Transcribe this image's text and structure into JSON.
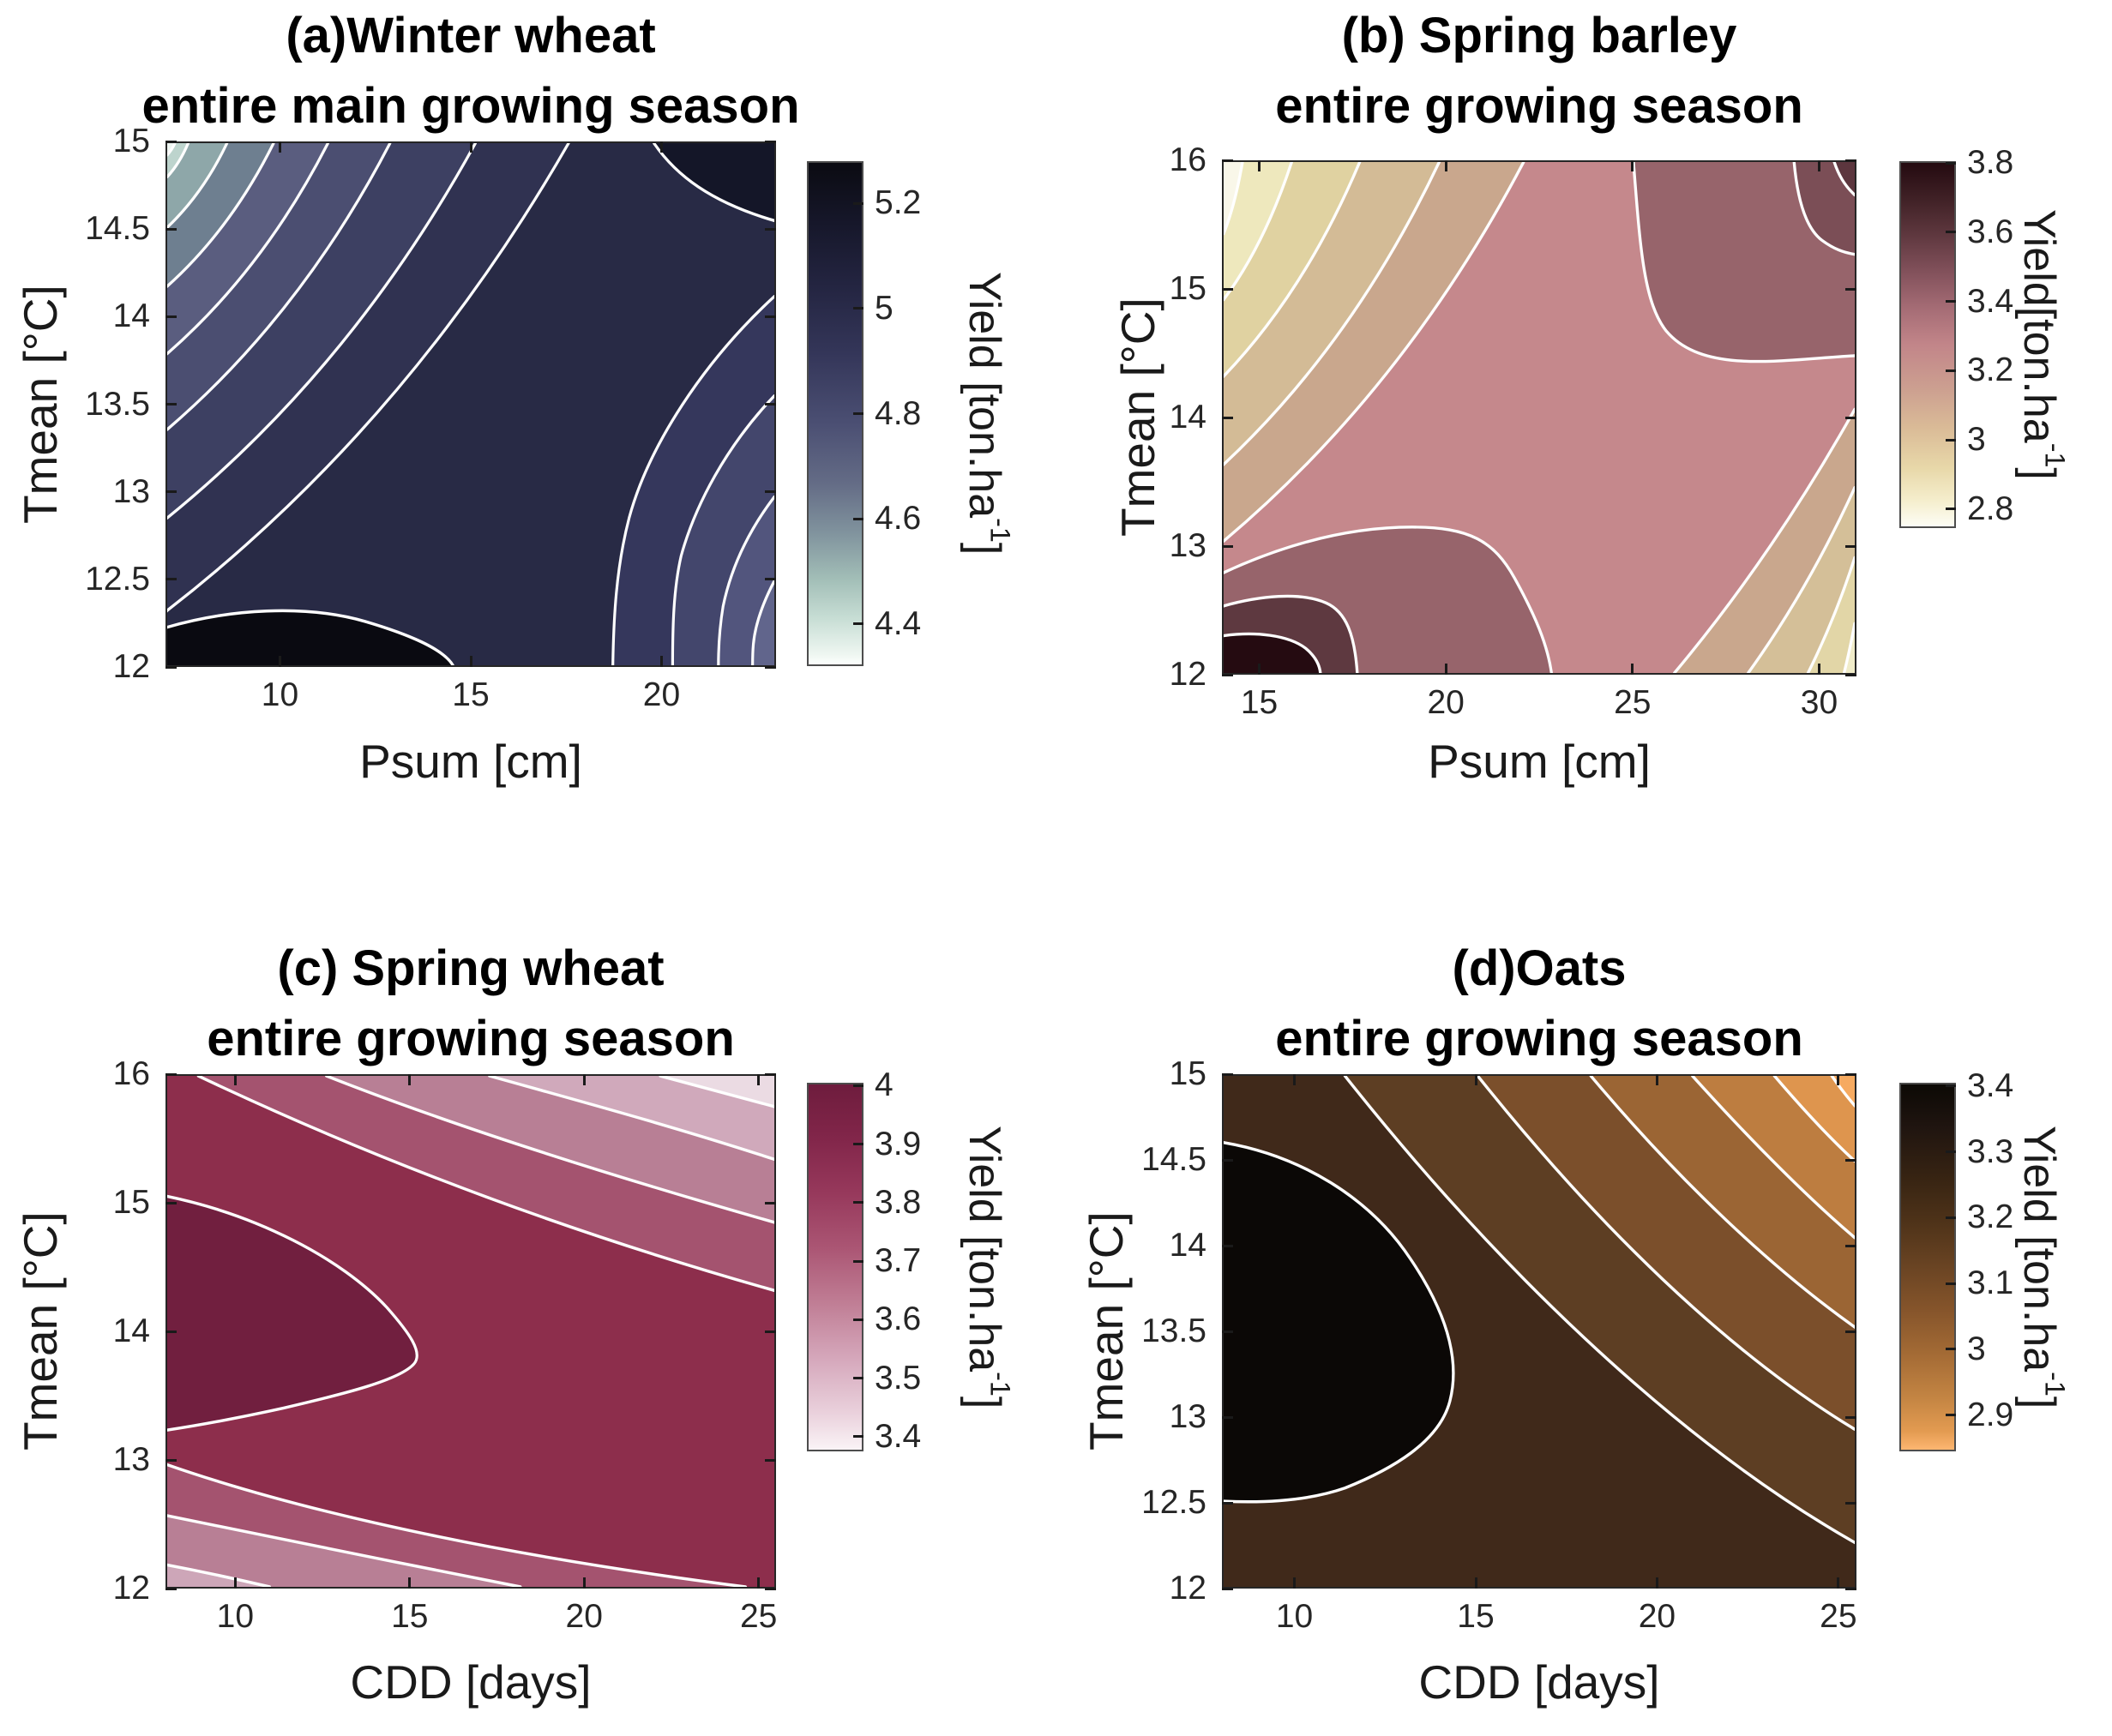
{
  "figure": {
    "description": "Four filled contour plots (response surfaces) of crop yield versus growing-season climate variables",
    "contour_line_color": "#ffffff",
    "background": "#ffffff"
  },
  "chart_data": {
    "type": "filled_contour_grid",
    "panels": [
      {
        "label": "a",
        "crop": "Winter wheat",
        "title1": "(a)Winter wheat",
        "title2": "entire main growing season",
        "xlabel": "Psum [cm]",
        "ylabel": "Tmean [°C]",
        "x_range": [
          7,
          23
        ],
        "x_ticks": [
          10,
          15,
          20
        ],
        "x_tick_labels": [
          "10",
          "15",
          "20"
        ],
        "y_range": [
          12,
          15
        ],
        "y_ticks": [
          12,
          12.5,
          13,
          13.5,
          14,
          14.5,
          15
        ],
        "y_tick_labels": [
          "12",
          "12.5",
          "13",
          "13.5",
          "14",
          "14.5",
          "15"
        ],
        "colorbar": {
          "label": "Yield [ton.ha",
          "label_sup": "-1",
          "label_close": "]",
          "top_value": 5.28,
          "bottom_value": 4.32,
          "ticks": [
            5.2,
            5,
            4.8,
            4.6,
            4.4
          ],
          "tick_labels": [
            "5.2",
            "5",
            "4.8",
            "4.6",
            "4.4"
          ],
          "colormap": [
            "#fcfffd",
            "#a2beb7",
            "#4b4f73",
            "#232440",
            "#0b0b12"
          ],
          "direction": "dark = high yield"
        },
        "yield_estimates": {
          "top_left": 4.35,
          "top_right": 5.25,
          "center": 5.15,
          "bottom_left_max": 5.3,
          "bottom_right": 4.85,
          "pattern": "low yield fan at low Psum / high Tmean (top-left); maximum dark region at low Psum / low Tmean (bottom-left); yield decreases again toward high Psum at low Tmean (bottom-right bands)"
        }
      },
      {
        "label": "b",
        "crop": "Spring barley",
        "title1": "(b) Spring barley",
        "title2": "entire growing season",
        "xlabel": "Psum [cm]",
        "ylabel": "Tmean [°C]",
        "x_range": [
          14,
          31
        ],
        "x_ticks": [
          15,
          20,
          25,
          30
        ],
        "x_tick_labels": [
          "15",
          "20",
          "25",
          "30"
        ],
        "y_range": [
          12,
          16
        ],
        "y_ticks": [
          12,
          13,
          14,
          15,
          16
        ],
        "y_tick_labels": [
          "12",
          "13",
          "14",
          "15",
          "16"
        ],
        "colorbar": {
          "label": "Yield[ton.ha",
          "label_sup": "-1",
          "label_close": "]",
          "top_value": 3.805,
          "bottom_value": 2.745,
          "ticks": [
            3.8,
            3.6,
            3.4,
            3.2,
            3,
            2.8
          ],
          "tick_labels": [
            "3.8",
            "3.6",
            "3.4",
            "3.2",
            "3",
            "2.8"
          ],
          "colormap": [
            "#fdfdf5",
            "#e8d8a9",
            "#c28589",
            "#82515b",
            "#240a10"
          ],
          "direction": "dark = high yield"
        },
        "yield_estimates": {
          "top_left": 2.78,
          "top_right": 3.68,
          "center": 3.42,
          "bottom_left_max": 3.8,
          "bottom_right": 2.9,
          "pattern": "saddle surface: pale low-yield fans at top-left and bottom-right corners; dark high-yield maximum at bottom-left (low Psum, low Tmean) and secondary dark region at top-right (high Psum, high Tmean)"
        }
      },
      {
        "label": "c",
        "crop": "Spring wheat",
        "title1": "(c) Spring wheat",
        "title2": "entire growing season",
        "xlabel": "CDD [days]",
        "ylabel": "Tmean [°C]",
        "x_range": [
          8,
          25.5
        ],
        "x_ticks": [
          10,
          15,
          20,
          25
        ],
        "x_tick_labels": [
          "10",
          "15",
          "20",
          "25"
        ],
        "y_range": [
          12,
          16
        ],
        "y_ticks": [
          12,
          13,
          14,
          15,
          16
        ],
        "y_tick_labels": [
          "12",
          "13",
          "14",
          "15",
          "16"
        ],
        "colorbar": {
          "label": "Yield [ton.ha",
          "label_sup": "-1",
          "label_close": "]",
          "top_value": 4.005,
          "bottom_value": 3.375,
          "ticks": [
            4,
            3.9,
            3.8,
            3.7,
            3.6,
            3.5,
            3.4
          ],
          "tick_labels": [
            "4",
            "3.9",
            "3.8",
            "3.7",
            "3.6",
            "3.5",
            "3.4"
          ],
          "colormap": [
            "#faf3f6",
            "#d5a7bb",
            "#ab5674",
            "#82264a",
            "#6e1c3d"
          ],
          "direction": "dark = high yield"
        },
        "yield_estimates": {
          "top_left": 3.93,
          "top_right": 3.42,
          "center": 3.92,
          "left_center_max": 4.0,
          "bottom_left": 3.6,
          "bottom_right": 3.88,
          "pattern": "dark high-yield region over most of plot; darkest maximum lobe at left (CDD 8-14, Tmean ~13.5-15); yield decreases in diagonal bands toward top-right corner (white) and slightly toward bottom-left"
        }
      },
      {
        "label": "d",
        "crop": "Oats",
        "title1": "(d)Oats",
        "title2": "entire growing season",
        "xlabel": "CDD [days]",
        "ylabel": "Tmean [°C]",
        "x_range": [
          8,
          25.5
        ],
        "x_ticks": [
          10,
          15,
          20,
          25
        ],
        "x_tick_labels": [
          "10",
          "15",
          "20",
          "25"
        ],
        "y_range": [
          12,
          15
        ],
        "y_ticks": [
          12,
          12.5,
          13,
          13.5,
          14,
          14.5,
          15
        ],
        "y_tick_labels": [
          "12",
          "12.5",
          "13",
          "13.5",
          "14",
          "14.5",
          "15"
        ],
        "colorbar": {
          "label": "Yield [ton.ha",
          "label_sup": "-1",
          "label_close": "]",
          "top_value": 3.405,
          "bottom_value": 2.845,
          "ticks": [
            3.4,
            3.3,
            3.2,
            3.1,
            3,
            2.9
          ],
          "tick_labels": [
            "3.4",
            "3.3",
            "3.2",
            "3.1",
            "3",
            "2.9"
          ],
          "colormap": [
            "#fdb671",
            "#c48543",
            "#6a4423",
            "#362312",
            "#0c0905"
          ],
          "direction": "dark = high yield"
        },
        "yield_estimates": {
          "top_left": 3.32,
          "top_right": 2.88,
          "center": 3.28,
          "left_max": 3.4,
          "bottom_left": 3.33,
          "bottom_right": 3.15,
          "pattern": "black high-yield lobe at left (CDD 8-13, Tmean ~12.5-14.8); dark brown over center and bottom; yield decreases in diagonal orange bands toward top-right corner"
        }
      }
    ]
  }
}
